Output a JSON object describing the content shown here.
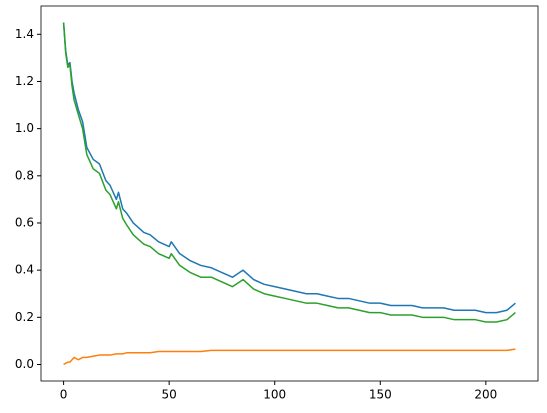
{
  "chart_data": {
    "type": "line",
    "x": [
      0,
      1,
      2,
      3,
      4,
      5,
      7,
      9,
      11,
      14,
      17,
      20,
      22,
      25,
      26,
      28,
      30,
      33,
      38,
      41,
      45,
      50,
      51,
      55,
      60,
      65,
      70,
      75,
      80,
      85,
      90,
      95,
      100,
      105,
      110,
      115,
      120,
      125,
      130,
      135,
      140,
      145,
      150,
      155,
      160,
      165,
      170,
      175,
      180,
      185,
      190,
      195,
      200,
      205,
      210,
      214
    ],
    "series": [
      {
        "color": "#1f77b4",
        "values": [
          1.45,
          1.33,
          1.27,
          1.28,
          1.2,
          1.15,
          1.08,
          1.03,
          0.92,
          0.87,
          0.85,
          0.78,
          0.76,
          0.7,
          0.73,
          0.66,
          0.64,
          0.6,
          0.56,
          0.55,
          0.52,
          0.5,
          0.52,
          0.47,
          0.44,
          0.42,
          0.41,
          0.39,
          0.37,
          0.4,
          0.36,
          0.34,
          0.33,
          0.32,
          0.31,
          0.3,
          0.3,
          0.29,
          0.28,
          0.28,
          0.27,
          0.26,
          0.26,
          0.25,
          0.25,
          0.25,
          0.24,
          0.24,
          0.24,
          0.23,
          0.23,
          0.23,
          0.22,
          0.22,
          0.23,
          0.26
        ]
      },
      {
        "color": "#ff7f0e",
        "values": [
          0,
          0.005,
          0.01,
          0.01,
          0.02,
          0.03,
          0.02,
          0.03,
          0.03,
          0.035,
          0.04,
          0.04,
          0.04,
          0.045,
          0.045,
          0.045,
          0.05,
          0.05,
          0.05,
          0.05,
          0.055,
          0.055,
          0.055,
          0.055,
          0.055,
          0.055,
          0.06,
          0.06,
          0.06,
          0.06,
          0.06,
          0.06,
          0.06,
          0.06,
          0.06,
          0.06,
          0.06,
          0.06,
          0.06,
          0.06,
          0.06,
          0.06,
          0.06,
          0.06,
          0.06,
          0.06,
          0.06,
          0.06,
          0.06,
          0.06,
          0.06,
          0.06,
          0.06,
          0.06,
          0.06,
          0.065
        ]
      },
      {
        "color": "#2ca02c",
        "values": [
          1.45,
          1.32,
          1.26,
          1.27,
          1.18,
          1.12,
          1.06,
          1.0,
          0.89,
          0.83,
          0.81,
          0.74,
          0.72,
          0.66,
          0.69,
          0.62,
          0.59,
          0.55,
          0.51,
          0.5,
          0.47,
          0.45,
          0.47,
          0.42,
          0.39,
          0.37,
          0.37,
          0.35,
          0.33,
          0.36,
          0.32,
          0.3,
          0.29,
          0.28,
          0.27,
          0.26,
          0.26,
          0.25,
          0.24,
          0.24,
          0.23,
          0.22,
          0.22,
          0.21,
          0.21,
          0.21,
          0.2,
          0.2,
          0.2,
          0.19,
          0.19,
          0.19,
          0.18,
          0.18,
          0.19,
          0.22
        ]
      }
    ],
    "xlim": [
      -10.7,
      224.7
    ],
    "xticks": [
      0,
      50,
      100,
      150,
      200
    ],
    "ylim": [
      -0.07,
      1.52
    ],
    "yticks": [
      {
        "value": 0,
        "label": "0.0"
      },
      0.2,
      0.4,
      0.6,
      0.8,
      {
        "value": 1,
        "label": "1.0"
      },
      1.2,
      1.4
    ]
  }
}
